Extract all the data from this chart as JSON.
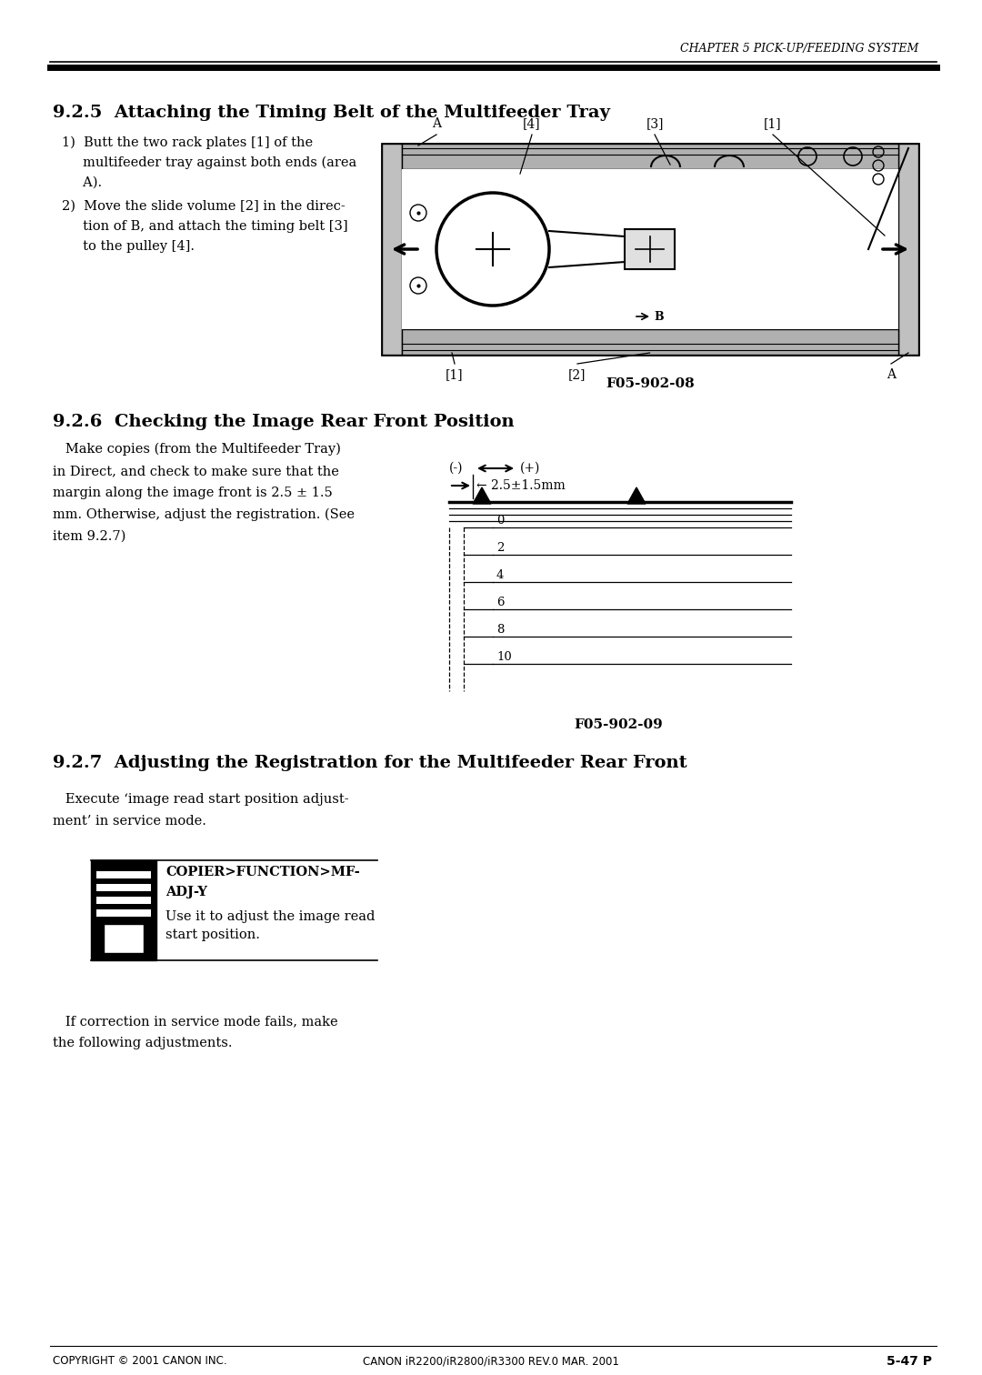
{
  "page_width": 10.8,
  "page_height": 15.12,
  "dpi": 100,
  "bg_color": "#ffffff",
  "header_text": "CHAPTER 5 PICK-UP/FEEDING SYSTEM",
  "section_925_title": "9.2.5  Attaching the Timing Belt of the Multifeeder Tray",
  "step1_line1": "1)  Butt the two rack plates [1] of the",
  "step1_line2": "     multifeeder tray against both ends (area",
  "step1_line3": "     A).",
  "step2_line1": "2)  Move the slide volume [2] in the direc-",
  "step2_line2": "     tion of B, and attach the timing belt [3]",
  "step2_line3": "     to the pulley [4].",
  "fig1_caption": "F05-902-08",
  "section_926_title": "9.2.6  Checking the Image Rear Front Position",
  "body_926_l1": "   Make copies (from the Multifeeder Tray)",
  "body_926_l2": "in Direct, and check to make sure that the",
  "body_926_l3": "margin along the image front is 2.5 ± 1.5",
  "body_926_l4": "mm. Otherwise, adjust the registration. (See",
  "body_926_l5": "item 9.2.7)",
  "fig2_caption": "F05-902-09",
  "section_927_title": "9.2.7  Adjusting the Registration for the Multifeeder Rear Front",
  "body_927a_l1": "   Execute ‘image read start position adjust-",
  "body_927a_l2": "ment’ in service mode.",
  "svc_cmd_l1": "COPIER>FUNCTION>MF-",
  "svc_cmd_l2": "ADJ-Y",
  "svc_desc_l1": "Use it to adjust the image read",
  "svc_desc_l2": "start position.",
  "body_927b_l1": "   If correction in service mode fails, make",
  "body_927b_l2": "the following adjustments.",
  "footer_left": "COPYRIGHT © 2001 CANON INC.",
  "footer_center": "CANON iR2200/iR2800/iR3300 REV.0 MAR. 2001",
  "footer_right": "5-47 P"
}
